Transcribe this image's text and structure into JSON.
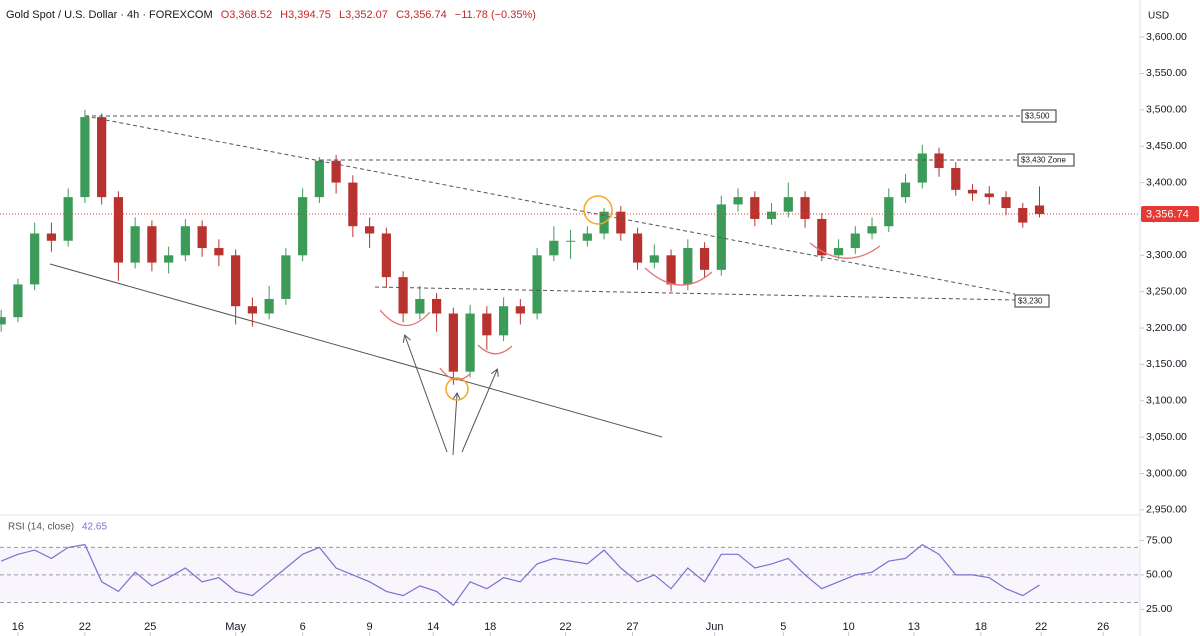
{
  "chart_data": [
    {
      "type": "candlestick",
      "title": "Gold Spot / U.S. Dollar · 4h · FOREXCOM",
      "quote": [
        "O3,368.52",
        "H3,394.75",
        "L3,352.07",
        "C3,356.74",
        "−11.78 (−0.35%)"
      ],
      "currency": "USD",
      "x": [
        1,
        2,
        3,
        4,
        5,
        6,
        7,
        8,
        9,
        10,
        11,
        12,
        13,
        14,
        15,
        16,
        17,
        18,
        19,
        20,
        21,
        22,
        23,
        24,
        25,
        26,
        27,
        28,
        29,
        30,
        31,
        32,
        33,
        34,
        35,
        36,
        37,
        38,
        39,
        40,
        41,
        42,
        43,
        44,
        45,
        46,
        47,
        48,
        49,
        50,
        51,
        52,
        53,
        54,
        55,
        56,
        57,
        58,
        59,
        60,
        61,
        62,
        63
      ],
      "open": [
        3205,
        3215,
        3260,
        3330,
        3320,
        3380,
        3490,
        3380,
        3290,
        3340,
        3290,
        3300,
        3340,
        3310,
        3300,
        3230,
        3220,
        3240,
        3300,
        3380,
        3430,
        3400,
        3340,
        3330,
        3270,
        3220,
        3240,
        3220,
        3140,
        3220,
        3190,
        3230,
        3220,
        3300,
        3320,
        3320,
        3330,
        3360,
        3330,
        3290,
        3300,
        3260,
        3310,
        3280,
        3370,
        3380,
        3350,
        3360,
        3380,
        3350,
        3300,
        3310,
        3330,
        3340,
        3380,
        3400,
        3440,
        3420,
        3390,
        3385,
        3380,
        3365,
        3368.52
      ],
      "high": [
        3225,
        3268,
        3345,
        3345,
        3392,
        3500,
        3495,
        3388,
        3352,
        3348,
        3312,
        3350,
        3348,
        3322,
        3308,
        3242,
        3258,
        3310,
        3392,
        3435,
        3438,
        3410,
        3352,
        3338,
        3278,
        3258,
        3248,
        3228,
        3232,
        3230,
        3242,
        3240,
        3310,
        3340,
        3335,
        3340,
        3365,
        3368,
        3338,
        3315,
        3308,
        3322,
        3318,
        3382,
        3392,
        3388,
        3372,
        3400,
        3388,
        3358,
        3322,
        3340,
        3352,
        3392,
        3412,
        3452,
        3448,
        3428,
        3398,
        3395,
        3388,
        3372,
        3394.75
      ],
      "low": [
        3195,
        3208,
        3252,
        3305,
        3312,
        3372,
        3370,
        3265,
        3282,
        3278,
        3275,
        3292,
        3298,
        3285,
        3205,
        3202,
        3212,
        3232,
        3292,
        3372,
        3385,
        3325,
        3310,
        3255,
        3208,
        3212,
        3195,
        3122,
        3132,
        3170,
        3182,
        3205,
        3212,
        3292,
        3295,
        3312,
        3322,
        3320,
        3280,
        3282,
        3250,
        3252,
        3270,
        3272,
        3360,
        3340,
        3342,
        3352,
        3338,
        3292,
        3295,
        3302,
        3322,
        3332,
        3372,
        3392,
        3408,
        3382,
        3375,
        3370,
        3355,
        3338,
        3352.07
      ],
      "close": [
        3215,
        3260,
        3330,
        3320,
        3380,
        3490,
        3380,
        3290,
        3340,
        3290,
        3300,
        3340,
        3310,
        3300,
        3230,
        3220,
        3240,
        3300,
        3380,
        3430,
        3400,
        3340,
        3330,
        3270,
        3220,
        3240,
        3220,
        3140,
        3220,
        3190,
        3230,
        3220,
        3300,
        3320,
        3320,
        3330,
        3360,
        3330,
        3290,
        3300,
        3260,
        3310,
        3280,
        3370,
        3380,
        3350,
        3360,
        3380,
        3350,
        3300,
        3310,
        3330,
        3340,
        3380,
        3400,
        3440,
        3420,
        3390,
        3385,
        3380,
        3365,
        3345,
        3356.74
      ],
      "up_color": "#3d9b5a",
      "down_color": "#b8322f",
      "last_price": {
        "value": 3356.74,
        "label": "3,356.74"
      },
      "last_price_color": "#e53935",
      "annotations": [
        "$3,500",
        "$3,430 Zone",
        "$3,230"
      ],
      "xlim": [
        0.93,
        69
      ],
      "ylim": [
        2943,
        3651
      ],
      "yticks": [
        {
          "value": 2950,
          "label": "2,950.00"
        },
        {
          "value": 3000,
          "label": "3,000.00"
        },
        {
          "value": 3050,
          "label": "3,050.00"
        },
        {
          "value": 3100,
          "label": "3,100.00"
        },
        {
          "value": 3150,
          "label": "3,150.00"
        },
        {
          "value": 3200,
          "label": "3,200.00"
        },
        {
          "value": 3250,
          "label": "3,250.00"
        },
        {
          "value": 3300,
          "label": "3,300.00"
        },
        {
          "value": 3350,
          "label": "3,350.00"
        },
        {
          "value": 3400,
          "label": "3,400.00"
        },
        {
          "value": 3450,
          "label": "3,450.00"
        },
        {
          "value": 3500,
          "label": "3,500.00"
        },
        {
          "value": 3550,
          "label": "3,550.00"
        },
        {
          "value": 3600,
          "label": "3,600.00"
        }
      ]
    },
    {
      "type": "line",
      "title": "RSI (14, close)",
      "x": [
        1,
        2,
        3,
        4,
        5,
        6,
        7,
        8,
        9,
        10,
        11,
        12,
        13,
        14,
        15,
        16,
        17,
        18,
        19,
        20,
        21,
        22,
        23,
        24,
        25,
        26,
        27,
        28,
        29,
        30,
        31,
        32,
        33,
        34,
        35,
        36,
        37,
        38,
        39,
        40,
        41,
        42,
        43,
        44,
        45,
        46,
        47,
        48,
        49,
        50,
        51,
        52,
        53,
        54,
        55,
        56,
        57,
        58,
        59,
        60,
        61,
        62,
        63
      ],
      "values": [
        60,
        65,
        68,
        62,
        70,
        72,
        45,
        38,
        52,
        42,
        48,
        55,
        45,
        48,
        38,
        35,
        45,
        55,
        65,
        70,
        55,
        50,
        45,
        38,
        35,
        42,
        38,
        28,
        45,
        40,
        48,
        45,
        58,
        62,
        60,
        58,
        68,
        55,
        45,
        50,
        40,
        55,
        45,
        65,
        65,
        55,
        58,
        62,
        50,
        40,
        45,
        50,
        52,
        60,
        62,
        72,
        65,
        50,
        50,
        48,
        40,
        35,
        42.65
      ],
      "color": "#7e6fd0",
      "bands": [
        70,
        50,
        30
      ],
      "xlim": [
        0.93,
        69
      ],
      "ylim": [
        10,
        93.5
      ],
      "yticks": [
        {
          "value": 25,
          "label": "25.00"
        },
        {
          "value": 50,
          "label": "50.00"
        },
        {
          "value": 75,
          "label": "75.00"
        }
      ],
      "xticks": [
        {
          "value": 2,
          "label": "16"
        },
        {
          "value": 6,
          "label": "22"
        },
        {
          "value": 9.9,
          "label": "25"
        },
        {
          "value": 15,
          "label": "May"
        },
        {
          "value": 19,
          "label": "6"
        },
        {
          "value": 23,
          "label": "9"
        },
        {
          "value": 26.8,
          "label": "14"
        },
        {
          "value": 30.2,
          "label": "18"
        },
        {
          "value": 34.7,
          "label": "22"
        },
        {
          "value": 38.7,
          "label": "27"
        },
        {
          "value": 43.6,
          "label": "Jun"
        },
        {
          "value": 47.7,
          "label": "5"
        },
        {
          "value": 51.6,
          "label": "10"
        },
        {
          "value": 55.5,
          "label": "13"
        },
        {
          "value": 59.5,
          "label": "18"
        },
        {
          "value": 63.1,
          "label": "22"
        },
        {
          "value": 66.8,
          "label": "26"
        }
      ]
    }
  ]
}
